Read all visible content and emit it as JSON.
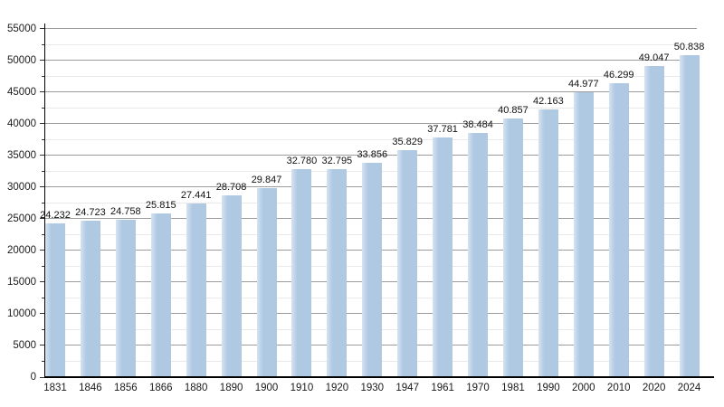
{
  "chart_data": {
    "type": "bar",
    "title": "",
    "xlabel": "",
    "ylabel": "",
    "categories": [
      "1831",
      "1846",
      "1856",
      "1866",
      "1880",
      "1890",
      "1900",
      "1910",
      "1920",
      "1930",
      "1947",
      "1961",
      "1970",
      "1981",
      "1990",
      "2000",
      "2010",
      "2020",
      "2024"
    ],
    "values": [
      24232,
      24723,
      24758,
      25815,
      27441,
      28708,
      29847,
      32780,
      32795,
      33856,
      35829,
      37781,
      38484,
      40857,
      42163,
      44977,
      46299,
      49047,
      50838
    ],
    "value_labels": [
      "24.232",
      "24.723",
      "24.758",
      "25.815",
      "27.441",
      "28.708",
      "29.847",
      "32.780",
      "32.795",
      "33.856",
      "35.829",
      "37.781",
      "38.484",
      "40.857",
      "42.163",
      "44.977",
      "46.299",
      "49.047",
      "50.838"
    ],
    "ylim": [
      0,
      55000
    ],
    "y_major_step": 5000,
    "y_minor_step": 2500,
    "y_tick_labels": [
      "0",
      "5000",
      "10000",
      "15000",
      "20000",
      "25000",
      "30000",
      "35000",
      "40000",
      "45000",
      "50000",
      "55000"
    ],
    "grid": "horizontal-major-and-minor",
    "legend": "none",
    "colors": {
      "bar_fill": "#afc9e3",
      "bar_fill_light_edge": "#d6e3f2",
      "grid_major": "#9c9c9c",
      "grid_minor": "#e9e9e9",
      "axis": "#000000",
      "text": "#1a1a1a",
      "background": "#ffffff"
    }
  }
}
